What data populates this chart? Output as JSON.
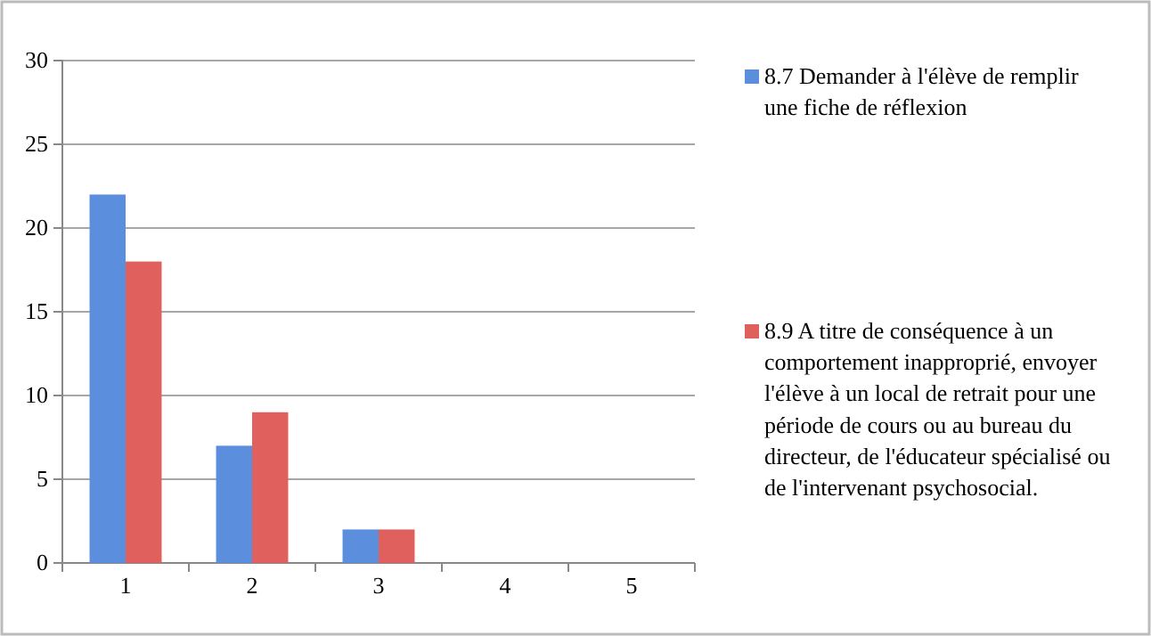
{
  "chart_data": {
    "type": "bar",
    "categories": [
      "1",
      "2",
      "3",
      "4",
      "5"
    ],
    "series": [
      {
        "name": "8.7 Demander à l'élève de remplir une fiche de réflexion",
        "color": "#5b8fde",
        "values": [
          22,
          7,
          2,
          0,
          0
        ]
      },
      {
        "name": "8.9 A titre de conséquence à un comportement inapproprié, envoyer l'élève à un local de retrait  pour une période de cours ou au bureau du directeur, de l'éducateur spécialisé ou de l'intervenant psychosocial.",
        "color": "#e0605e",
        "values": [
          18,
          9,
          2,
          0,
          0
        ]
      }
    ],
    "ylim": [
      0,
      30
    ],
    "yticks": [
      0,
      5,
      10,
      15,
      20,
      25,
      30
    ],
    "grid": "y",
    "legend": "right"
  }
}
